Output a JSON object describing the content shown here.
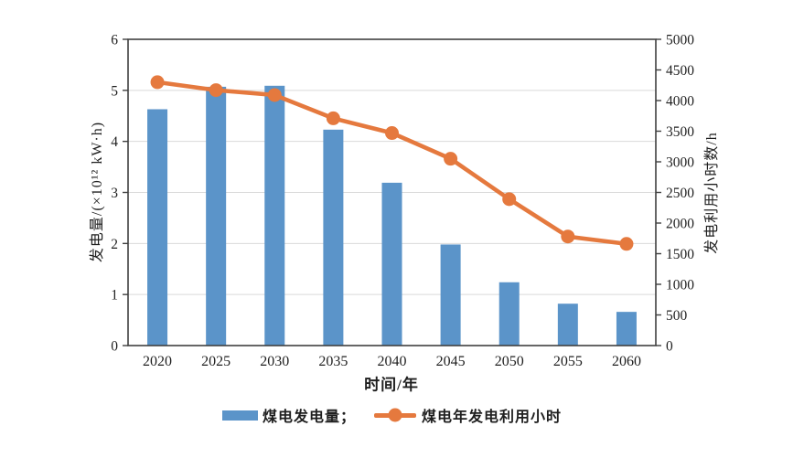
{
  "chart_data": {
    "type": "combo",
    "categories": [
      "2020",
      "2025",
      "2030",
      "2035",
      "2040",
      "2045",
      "2050",
      "2055",
      "2060"
    ],
    "series": [
      {
        "name": "煤电发电量",
        "type": "bar",
        "y_axis": "left",
        "color": "#5b94c9",
        "values": [
          4.63,
          5.07,
          5.09,
          4.23,
          3.19,
          1.98,
          1.24,
          0.82,
          0.66
        ]
      },
      {
        "name": "煤电年发电利用小时",
        "type": "line",
        "y_axis": "right",
        "color": "#e5793e",
        "values": [
          4300,
          4170,
          4090,
          3710,
          3470,
          3050,
          2390,
          1780,
          1660
        ]
      }
    ],
    "left_axis": {
      "label": "发电量/(×10¹² kW·h)",
      "min": 0,
      "max": 6,
      "step": 1,
      "ticks": [
        "0",
        "1",
        "2",
        "3",
        "4",
        "5",
        "6"
      ]
    },
    "right_axis": {
      "label": "发电利用小时数/h",
      "min": 0,
      "max": 5000,
      "step": 500,
      "ticks": [
        "0",
        "500",
        "1000",
        "1500",
        "2000",
        "2500",
        "3000",
        "3500",
        "4000",
        "4500",
        "5000"
      ]
    },
    "x_axis": {
      "label": "时间/年"
    },
    "grid": {
      "horizontal": true
    },
    "legend_position": "bottom",
    "colors": {
      "bar": "#5b94c9",
      "line": "#e5793e",
      "grid": "#d9d9d9",
      "axis": "#404040",
      "text": "#1f1f1f"
    }
  },
  "legend": {
    "bar_label": "煤电发电量；",
    "line_label": "煤电年发电利用小时"
  }
}
